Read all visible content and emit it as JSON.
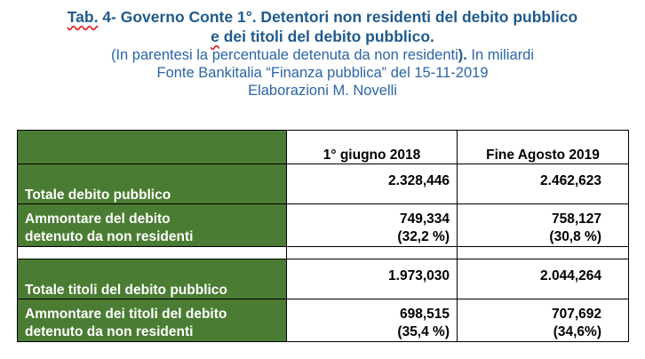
{
  "header": {
    "title_tab": "Tab.",
    "title_rest": " 4- Governo Conte 1°. Detentori non residenti del debito pubblico",
    "title_line2_e": "e",
    "title_line2_rest": " dei titoli del debito pubblico.",
    "subtitle_paren": "(In parentesi la percentuale detenuta da non residenti",
    "subtitle_close": ").",
    "subtitle_unit": " In miliardi",
    "source": "Fonte Bankitalia “Finanza pubblica” del 15-11-2019",
    "author": "Elaborazioni M. Novelli"
  },
  "table": {
    "columns": [
      "1° giugno 2018",
      "Fine Agosto 2019"
    ],
    "rows": [
      {
        "label": "Totale debito pubblico",
        "v1": "2.328,446",
        "v2": "2.462,623"
      },
      {
        "label_line1": "Ammontare del debito",
        "label_line2": "detenuto da non residenti",
        "v1": "749,334",
        "p1": "(32,2 %)",
        "v2": "758,127",
        "p2": "(30,8 %)"
      },
      {
        "label": "Totale titoli del debito pubblico",
        "v1": "1.973,030",
        "v2": "2.044,264"
      },
      {
        "label_line1": "Ammontare dei titoli del debito",
        "label_line2": "detenuto da non residenti",
        "v1": "698,515",
        "p1": "(35,4 %)",
        "v2": "707,692",
        "p2": "(34,6%)"
      }
    ]
  }
}
